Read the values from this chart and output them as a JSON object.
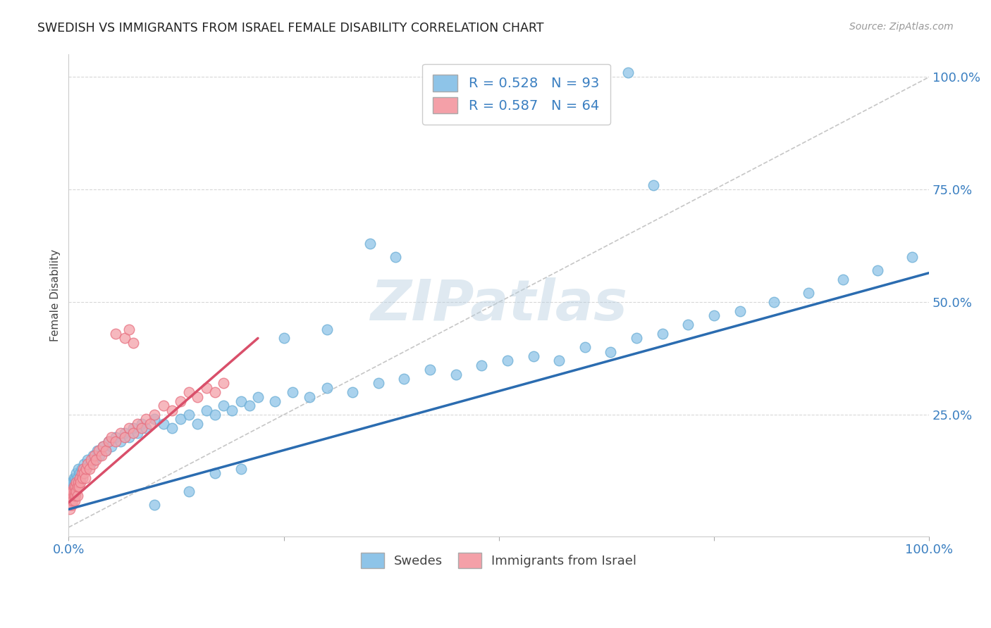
{
  "title": "SWEDISH VS IMMIGRANTS FROM ISRAEL FEMALE DISABILITY CORRELATION CHART",
  "source": "Source: ZipAtlas.com",
  "ylabel": "Female Disability",
  "watermark": "ZIPatlas",
  "xlim": [
    0,
    1
  ],
  "ylim": [
    0,
    1
  ],
  "swede_color": "#8ec4e8",
  "swede_edge_color": "#6aadd5",
  "israel_color": "#f4a0a8",
  "israel_edge_color": "#e87080",
  "swede_line_color": "#2b6cb0",
  "israel_line_color": "#d94f6a",
  "diagonal_color": "#c0c0c0",
  "R_swede": 0.528,
  "N_swede": 93,
  "R_israel": 0.587,
  "N_israel": 64,
  "legend_labels": [
    "Swedes",
    "Immigrants from Israel"
  ],
  "swede_line_x": [
    0.0,
    1.0
  ],
  "swede_line_y": [
    0.04,
    0.565
  ],
  "israel_line_x": [
    0.0,
    0.22
  ],
  "israel_line_y": [
    0.055,
    0.42
  ],
  "swedes_x": [
    0.001,
    0.002,
    0.002,
    0.003,
    0.003,
    0.004,
    0.004,
    0.005,
    0.005,
    0.006,
    0.006,
    0.007,
    0.007,
    0.008,
    0.008,
    0.009,
    0.009,
    0.01,
    0.01,
    0.011,
    0.012,
    0.013,
    0.014,
    0.015,
    0.016,
    0.018,
    0.02,
    0.022,
    0.025,
    0.028,
    0.03,
    0.033,
    0.036,
    0.04,
    0.043,
    0.046,
    0.05,
    0.055,
    0.06,
    0.065,
    0.07,
    0.075,
    0.08,
    0.085,
    0.09,
    0.1,
    0.11,
    0.12,
    0.13,
    0.14,
    0.15,
    0.16,
    0.17,
    0.18,
    0.19,
    0.2,
    0.21,
    0.22,
    0.24,
    0.26,
    0.28,
    0.3,
    0.33,
    0.36,
    0.39,
    0.42,
    0.45,
    0.48,
    0.51,
    0.54,
    0.57,
    0.6,
    0.63,
    0.66,
    0.69,
    0.72,
    0.75,
    0.78,
    0.82,
    0.86,
    0.9,
    0.94,
    0.98,
    0.65,
    0.68,
    0.35,
    0.38,
    0.3,
    0.25,
    0.2,
    0.17,
    0.14,
    0.1
  ],
  "swedes_y": [
    0.08,
    0.07,
    0.09,
    0.08,
    0.1,
    0.07,
    0.09,
    0.08,
    0.1,
    0.09,
    0.11,
    0.08,
    0.1,
    0.09,
    0.11,
    0.1,
    0.12,
    0.09,
    0.11,
    0.13,
    0.1,
    0.12,
    0.11,
    0.13,
    0.12,
    0.14,
    0.13,
    0.15,
    0.14,
    0.16,
    0.15,
    0.17,
    0.16,
    0.18,
    0.17,
    0.19,
    0.18,
    0.2,
    0.19,
    0.21,
    0.2,
    0.22,
    0.21,
    0.23,
    0.22,
    0.24,
    0.23,
    0.22,
    0.24,
    0.25,
    0.23,
    0.26,
    0.25,
    0.27,
    0.26,
    0.28,
    0.27,
    0.29,
    0.28,
    0.3,
    0.29,
    0.31,
    0.3,
    0.32,
    0.33,
    0.35,
    0.34,
    0.36,
    0.37,
    0.38,
    0.37,
    0.4,
    0.39,
    0.42,
    0.43,
    0.45,
    0.47,
    0.48,
    0.5,
    0.52,
    0.55,
    0.57,
    0.6,
    1.01,
    0.76,
    0.63,
    0.6,
    0.44,
    0.42,
    0.13,
    0.12,
    0.08,
    0.05
  ],
  "israel_x": [
    0.001,
    0.001,
    0.002,
    0.002,
    0.003,
    0.003,
    0.004,
    0.004,
    0.005,
    0.005,
    0.006,
    0.006,
    0.007,
    0.007,
    0.008,
    0.008,
    0.009,
    0.009,
    0.01,
    0.01,
    0.011,
    0.012,
    0.013,
    0.014,
    0.015,
    0.016,
    0.017,
    0.018,
    0.019,
    0.02,
    0.022,
    0.024,
    0.026,
    0.028,
    0.03,
    0.032,
    0.035,
    0.038,
    0.04,
    0.043,
    0.046,
    0.05,
    0.055,
    0.06,
    0.065,
    0.07,
    0.075,
    0.08,
    0.085,
    0.09,
    0.095,
    0.1,
    0.11,
    0.12,
    0.13,
    0.14,
    0.15,
    0.16,
    0.17,
    0.18,
    0.055,
    0.065,
    0.07,
    0.075
  ],
  "israel_y": [
    0.04,
    0.06,
    0.05,
    0.07,
    0.06,
    0.08,
    0.05,
    0.07,
    0.06,
    0.08,
    0.07,
    0.09,
    0.06,
    0.08,
    0.07,
    0.09,
    0.08,
    0.1,
    0.07,
    0.09,
    0.1,
    0.09,
    0.11,
    0.1,
    0.12,
    0.11,
    0.13,
    0.12,
    0.11,
    0.13,
    0.14,
    0.13,
    0.15,
    0.14,
    0.16,
    0.15,
    0.17,
    0.16,
    0.18,
    0.17,
    0.19,
    0.2,
    0.19,
    0.21,
    0.2,
    0.22,
    0.21,
    0.23,
    0.22,
    0.24,
    0.23,
    0.25,
    0.27,
    0.26,
    0.28,
    0.3,
    0.29,
    0.31,
    0.3,
    0.32,
    0.43,
    0.42,
    0.44,
    0.41
  ]
}
